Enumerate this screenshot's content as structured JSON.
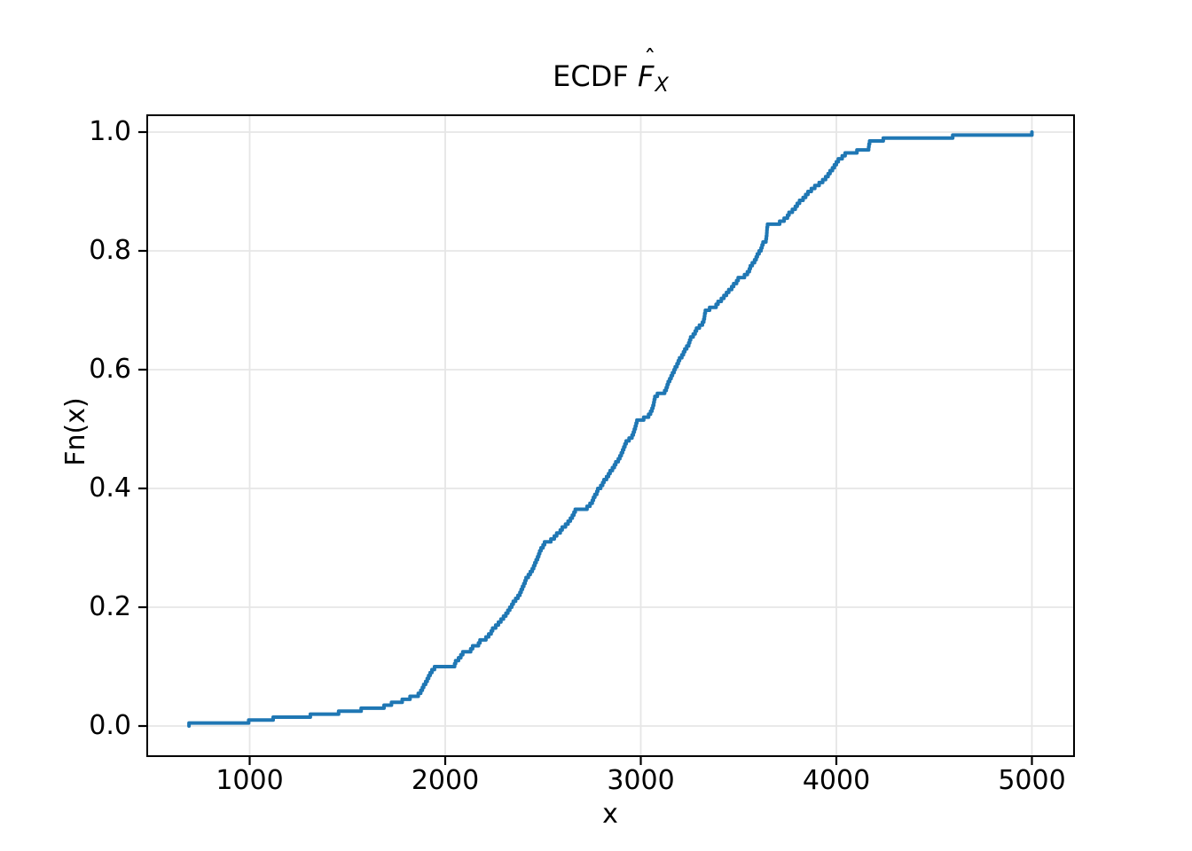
{
  "figure": {
    "background": "#ffffff"
  },
  "title": {
    "prefix": "ECDF",
    "math_f": "F",
    "math_hat": "ˆ",
    "math_sub": "X",
    "full_text": "ECDF F̂_X"
  },
  "axes": {
    "xlabel": "x",
    "ylabel": "Fn(x)",
    "xticks": [
      "1000",
      "2000",
      "3000",
      "4000",
      "5000"
    ],
    "yticks": [
      "0.0",
      "0.2",
      "0.4",
      "0.6",
      "0.8",
      "1.0"
    ],
    "grid": true,
    "grid_color": "#e6e6e6",
    "spine_color": "#000000",
    "tick_color": "#000000"
  },
  "chart_data": {
    "type": "line",
    "subtype": "ecdf-step",
    "title": "ECDF F̂_X",
    "xlabel": "x",
    "ylabel": "Fn(x)",
    "legend": null,
    "grid": true,
    "n": 200,
    "step_height": 0.005,
    "xlim": [
      475,
      5215
    ],
    "ylim": [
      -0.05,
      1.03
    ],
    "line_color": "#1f77b4",
    "samples": [
      690,
      995,
      1120,
      1310,
      1455,
      1570,
      1687,
      1725,
      1780,
      1820,
      1862,
      1875,
      1883,
      1890,
      1900,
      1908,
      1915,
      1923,
      1932,
      1945,
      2048,
      2053,
      2068,
      2080,
      2090,
      2130,
      2140,
      2170,
      2178,
      2208,
      2222,
      2235,
      2242,
      2258,
      2272,
      2285,
      2298,
      2310,
      2320,
      2330,
      2340,
      2348,
      2360,
      2372,
      2382,
      2388,
      2395,
      2402,
      2408,
      2413,
      2425,
      2435,
      2445,
      2452,
      2458,
      2465,
      2472,
      2478,
      2483,
      2490,
      2500,
      2508,
      2540,
      2558,
      2570,
      2588,
      2598,
      2615,
      2628,
      2640,
      2650,
      2658,
      2665,
      2725,
      2740,
      2752,
      2758,
      2765,
      2775,
      2780,
      2795,
      2805,
      2812,
      2825,
      2835,
      2843,
      2855,
      2865,
      2872,
      2885,
      2893,
      2900,
      2907,
      2913,
      2919,
      2925,
      2940,
      2955,
      2962,
      2967,
      2972,
      2976,
      2980,
      3015,
      3040,
      3050,
      3057,
      3062,
      3066,
      3069,
      3072,
      3085,
      3122,
      3130,
      3135,
      3140,
      3148,
      3155,
      3162,
      3170,
      3176,
      3185,
      3192,
      3198,
      3210,
      3218,
      3225,
      3235,
      3245,
      3250,
      3255,
      3268,
      3278,
      3285,
      3300,
      3315,
      3322,
      3325,
      3327,
      3330,
      3352,
      3385,
      3395,
      3412,
      3425,
      3438,
      3450,
      3465,
      3475,
      3490,
      3498,
      3530,
      3545,
      3555,
      3560,
      3570,
      3582,
      3590,
      3596,
      3605,
      3615,
      3620,
      3625,
      3640,
      3642,
      3644,
      3645,
      3646,
      3648,
      3710,
      3733,
      3750,
      3758,
      3775,
      3790,
      3800,
      3812,
      3830,
      3843,
      3855,
      3872,
      3890,
      3912,
      3930,
      3945,
      3958,
      3968,
      3980,
      3990,
      4000,
      4010,
      4030,
      4045,
      4105,
      4165,
      4167,
      4170,
      4240,
      4595,
      5000
    ]
  }
}
